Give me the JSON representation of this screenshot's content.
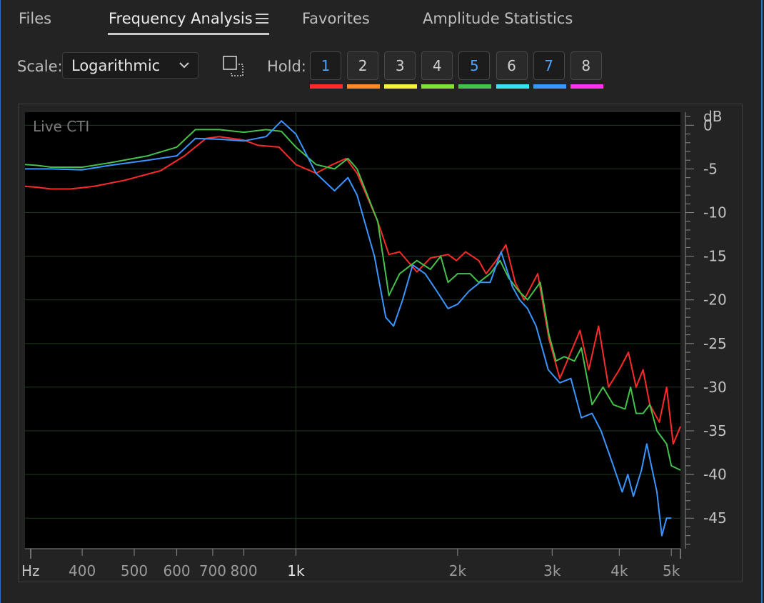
{
  "tabs": [
    {
      "label": "Files",
      "active": false
    },
    {
      "label": "Frequency Analysis",
      "active": true
    },
    {
      "label": "Favorites",
      "active": false
    },
    {
      "label": "Amplitude Statistics",
      "active": false
    }
  ],
  "toolbar": {
    "scale_label": "Scale:",
    "scale_value": "Logarithmic",
    "hold_label": "Hold:",
    "hold_buttons": [
      {
        "label": "1",
        "color": "#ff2a2a",
        "on": true
      },
      {
        "label": "2",
        "color": "#ff8a2a",
        "on": false
      },
      {
        "label": "3",
        "color": "#f4f23a",
        "on": false
      },
      {
        "label": "4",
        "color": "#7fe23a",
        "on": false
      },
      {
        "label": "5",
        "color": "#44c24a",
        "on": true
      },
      {
        "label": "6",
        "color": "#39e2f2",
        "on": false
      },
      {
        "label": "7",
        "color": "#3a96ff",
        "on": true
      },
      {
        "label": "8",
        "color": "#ff33ee",
        "on": false
      }
    ]
  },
  "chart_data": {
    "type": "line",
    "annotation": "Live CTI",
    "ylabel": "dB",
    "xlabel": "Hz",
    "x_scale": "log",
    "xlim": [
      313,
      5200
    ],
    "ylim": [
      -48.5,
      1.5
    ],
    "y_ticks": [
      0,
      -5,
      -10,
      -15,
      -20,
      -25,
      -30,
      -35,
      -40,
      -45
    ],
    "x_ticks": [
      {
        "value": 400,
        "label": "400"
      },
      {
        "value": 500,
        "label": "500"
      },
      {
        "value": 600,
        "label": "600"
      },
      {
        "value": 700,
        "label": "700"
      },
      {
        "value": 800,
        "label": "800"
      },
      {
        "value": 1000,
        "label": "1k"
      },
      {
        "value": 2000,
        "label": "2k"
      },
      {
        "value": 3000,
        "label": "3k"
      },
      {
        "value": 4000,
        "label": "4k"
      },
      {
        "value": 5000,
        "label": "5k"
      }
    ],
    "grid": true,
    "series": [
      {
        "hold": "1",
        "color": "#ff2a2a",
        "points": [
          [
            313,
            -7.0
          ],
          [
            330,
            -7.1
          ],
          [
            350,
            -7.3
          ],
          [
            380,
            -7.3
          ],
          [
            420,
            -7.0
          ],
          [
            480,
            -6.3
          ],
          [
            560,
            -5.2
          ],
          [
            620,
            -3.5
          ],
          [
            680,
            -1.5
          ],
          [
            720,
            -1.3
          ],
          [
            800,
            -1.7
          ],
          [
            850,
            -2.3
          ],
          [
            930,
            -2.5
          ],
          [
            1000,
            -4.5
          ],
          [
            1090,
            -5.5
          ],
          [
            1170,
            -4.5
          ],
          [
            1240,
            -3.8
          ],
          [
            1300,
            -5.5
          ],
          [
            1420,
            -11
          ],
          [
            1490,
            -14.8
          ],
          [
            1560,
            -14.5
          ],
          [
            1680,
            -16.8
          ],
          [
            1780,
            -15.2
          ],
          [
            1920,
            -14.8
          ],
          [
            1990,
            -15.5
          ],
          [
            2070,
            -14.5
          ],
          [
            2190,
            -15.5
          ],
          [
            2260,
            -17.0
          ],
          [
            2360,
            -15.5
          ],
          [
            2460,
            -13.7
          ],
          [
            2560,
            -18.0
          ],
          [
            2660,
            -20.0
          ],
          [
            2820,
            -17.0
          ],
          [
            2960,
            -24.5
          ],
          [
            3100,
            -29.0
          ],
          [
            3250,
            -26.0
          ],
          [
            3380,
            -23.5
          ],
          [
            3510,
            -28.0
          ],
          [
            3660,
            -23.0
          ],
          [
            3820,
            -30.0
          ],
          [
            4000,
            -28.0
          ],
          [
            4160,
            -26.0
          ],
          [
            4300,
            -30.0
          ],
          [
            4430,
            -28.0
          ],
          [
            4560,
            -32.0
          ],
          [
            4750,
            -34.0
          ],
          [
            4900,
            -30.0
          ],
          [
            5040,
            -36.5
          ],
          [
            5200,
            -34.5
          ]
        ]
      },
      {
        "hold": "5",
        "color": "#44c24a",
        "points": [
          [
            313,
            -4.5
          ],
          [
            330,
            -4.6
          ],
          [
            350,
            -4.8
          ],
          [
            400,
            -4.8
          ],
          [
            450,
            -4.3
          ],
          [
            530,
            -3.5
          ],
          [
            600,
            -2.5
          ],
          [
            650,
            -0.5
          ],
          [
            720,
            -0.5
          ],
          [
            800,
            -0.8
          ],
          [
            880,
            -0.5
          ],
          [
            940,
            -0.7
          ],
          [
            1000,
            -2.5
          ],
          [
            1090,
            -4.5
          ],
          [
            1180,
            -5.0
          ],
          [
            1250,
            -3.8
          ],
          [
            1300,
            -5.0
          ],
          [
            1420,
            -11
          ],
          [
            1490,
            -19.5
          ],
          [
            1560,
            -17.0
          ],
          [
            1680,
            -15.5
          ],
          [
            1780,
            -16.5
          ],
          [
            1860,
            -15.0
          ],
          [
            1920,
            -18.0
          ],
          [
            2000,
            -17.0
          ],
          [
            2110,
            -17.0
          ],
          [
            2190,
            -18.0
          ],
          [
            2300,
            -17.0
          ],
          [
            2400,
            -15.5
          ],
          [
            2490,
            -17.5
          ],
          [
            2600,
            -19.0
          ],
          [
            2700,
            -20.0
          ],
          [
            2850,
            -18.0
          ],
          [
            2960,
            -24.0
          ],
          [
            3050,
            -27.0
          ],
          [
            3160,
            -26.5
          ],
          [
            3300,
            -27.0
          ],
          [
            3400,
            -25.5
          ],
          [
            3560,
            -32.0
          ],
          [
            3730,
            -30.0
          ],
          [
            3900,
            -32.0
          ],
          [
            4100,
            -32.5
          ],
          [
            4200,
            -30.0
          ],
          [
            4300,
            -33.0
          ],
          [
            4430,
            -33.0
          ],
          [
            4560,
            -32.0
          ],
          [
            4700,
            -35.0
          ],
          [
            4900,
            -36.5
          ],
          [
            5000,
            -39.0
          ],
          [
            5200,
            -39.5
          ]
        ]
      },
      {
        "hold": "7",
        "color": "#3a96ff",
        "points": [
          [
            313,
            -5.0
          ],
          [
            350,
            -5.0
          ],
          [
            400,
            -5.1
          ],
          [
            450,
            -4.6
          ],
          [
            530,
            -4.0
          ],
          [
            600,
            -3.5
          ],
          [
            650,
            -1.5
          ],
          [
            720,
            -1.6
          ],
          [
            800,
            -1.8
          ],
          [
            880,
            -1.3
          ],
          [
            940,
            0.5
          ],
          [
            1000,
            -1.0
          ],
          [
            1090,
            -5.5
          ],
          [
            1180,
            -7.5
          ],
          [
            1250,
            -6.0
          ],
          [
            1300,
            -8.0
          ],
          [
            1400,
            -15
          ],
          [
            1470,
            -22.0
          ],
          [
            1520,
            -23.0
          ],
          [
            1580,
            -20.0
          ],
          [
            1650,
            -16.0
          ],
          [
            1740,
            -17.0
          ],
          [
            1830,
            -19.0
          ],
          [
            1920,
            -21.0
          ],
          [
            2000,
            -20.5
          ],
          [
            2100,
            -19.0
          ],
          [
            2200,
            -18.0
          ],
          [
            2300,
            -18.0
          ],
          [
            2410,
            -14.5
          ],
          [
            2530,
            -18.5
          ],
          [
            2610,
            -20.0
          ],
          [
            2700,
            -21.0
          ],
          [
            2800,
            -23.0
          ],
          [
            2950,
            -28.0
          ],
          [
            3100,
            -29.5
          ],
          [
            3250,
            -29.0
          ],
          [
            3400,
            -33.5
          ],
          [
            3560,
            -33.0
          ],
          [
            3700,
            -35.0
          ],
          [
            3900,
            -39.0
          ],
          [
            4050,
            -42.0
          ],
          [
            4150,
            -40.0
          ],
          [
            4250,
            -42.5
          ],
          [
            4400,
            -39.5
          ],
          [
            4500,
            -36.5
          ],
          [
            4700,
            -42.0
          ],
          [
            4800,
            -47.0
          ],
          [
            4900,
            -45.0
          ],
          [
            5000,
            -45.0
          ]
        ]
      }
    ]
  }
}
